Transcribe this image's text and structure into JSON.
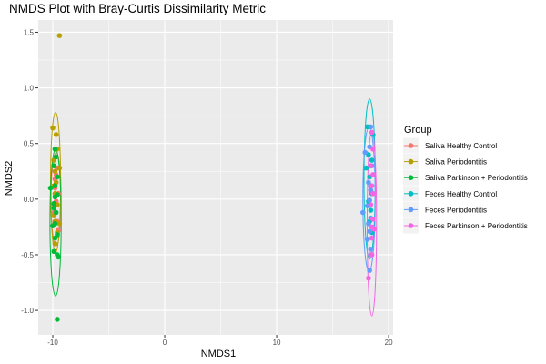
{
  "chart_data": {
    "type": "scatter",
    "title": "NMDS Plot with Bray-Curtis Dissimilarity Metric",
    "xlabel": "NMDS1",
    "ylabel": "NMDS2",
    "xlim": [
      -11.3,
      20.4
    ],
    "ylim": [
      -1.22,
      1.61
    ],
    "x_ticks": [
      -10,
      0,
      10,
      20
    ],
    "x_tick_labels": [
      "-10",
      "0",
      "10",
      "20"
    ],
    "y_ticks": [
      -1.0,
      -0.5,
      0.0,
      0.5,
      1.0,
      1.5
    ],
    "y_tick_labels": [
      "-1.0",
      "-0.5",
      "0.0",
      "0.5",
      "1.0",
      "1.5"
    ],
    "grid": true,
    "panel_background": "#ebebeb",
    "legend": {
      "title": "Group",
      "position": "right"
    },
    "series": [
      {
        "name": "Saliva Healthy Control",
        "color": "#f8766d",
        "points": [
          [
            -9.6,
            0.28
          ],
          [
            -9.8,
            0.18
          ],
          [
            -9.5,
            0.05
          ],
          [
            -9.7,
            -0.02
          ],
          [
            -9.9,
            -0.12
          ],
          [
            -9.6,
            -0.2
          ],
          [
            -9.8,
            0.1
          ],
          [
            -9.5,
            -0.28
          ],
          [
            -9.7,
            0.22
          ],
          [
            -9.9,
            -0.05
          ]
        ],
        "ellipse": {
          "center": [
            -9.7,
            0.0
          ],
          "semi_x": 0.45,
          "semi_y": 0.42
        }
      },
      {
        "name": "Saliva Periodontitis",
        "color": "#b79f00",
        "points": [
          [
            -9.4,
            1.47
          ],
          [
            -10.0,
            0.64
          ],
          [
            -9.7,
            0.58
          ],
          [
            -9.6,
            0.45
          ],
          [
            -9.9,
            0.35
          ],
          [
            -9.8,
            0.25
          ],
          [
            -9.4,
            0.28
          ],
          [
            -9.7,
            0.15
          ],
          [
            -9.8,
            0.05
          ],
          [
            -9.6,
            -0.05
          ],
          [
            -9.9,
            -0.15
          ],
          [
            -9.8,
            -0.2
          ],
          [
            -9.4,
            -0.22
          ],
          [
            -9.6,
            -0.3
          ],
          [
            -9.8,
            -0.4
          ],
          [
            -9.9,
            0.12
          ]
        ],
        "ellipse": {
          "center": [
            -9.75,
            0.15
          ],
          "semi_x": 0.45,
          "semi_y": 0.63
        }
      },
      {
        "name": "Saliva Parkinson + Periodontitis",
        "color": "#00ba38",
        "points": [
          [
            -9.6,
            -1.08
          ],
          [
            -9.8,
            0.45
          ],
          [
            -9.7,
            0.38
          ],
          [
            -9.9,
            0.3
          ],
          [
            -9.6,
            0.2
          ],
          [
            -9.8,
            0.12
          ],
          [
            -10.2,
            0.1
          ],
          [
            -9.6,
            0.04
          ],
          [
            -9.8,
            0.02
          ],
          [
            -9.9,
            -0.08
          ],
          [
            -9.7,
            -0.12
          ],
          [
            -9.8,
            -0.22
          ],
          [
            -10.0,
            -0.24
          ],
          [
            -9.6,
            -0.32
          ],
          [
            -9.8,
            -0.35
          ],
          [
            -9.9,
            -0.47
          ],
          [
            -9.6,
            -0.5
          ],
          [
            -9.5,
            -0.52
          ],
          [
            -9.9,
            -0.04
          ]
        ],
        "ellipse": {
          "center": [
            -9.75,
            -0.21
          ],
          "semi_x": 0.5,
          "semi_y": 0.66
        }
      },
      {
        "name": "Feces Healthy Control",
        "color": "#00bfc4",
        "points": [
          [
            18.1,
            0.65
          ],
          [
            18.6,
            0.58
          ],
          [
            18.2,
            0.4
          ],
          [
            18.5,
            0.35
          ],
          [
            18.0,
            0.28
          ],
          [
            18.3,
            0.2
          ],
          [
            18.4,
            0.12
          ],
          [
            18.5,
            0.05
          ],
          [
            18.2,
            -0.02
          ],
          [
            18.4,
            -0.1
          ],
          [
            18.3,
            -0.2
          ],
          [
            18.5,
            -0.3
          ]
        ],
        "ellipse": {
          "center": [
            18.3,
            0.18
          ],
          "semi_x": 0.5,
          "semi_y": 0.72
        }
      },
      {
        "name": "Feces Periodontitis",
        "color": "#619cff",
        "points": [
          [
            18.4,
            0.65
          ],
          [
            18.3,
            0.47
          ],
          [
            17.9,
            0.42
          ],
          [
            18.5,
            0.3
          ],
          [
            18.2,
            0.15
          ],
          [
            18.4,
            0.08
          ],
          [
            18.3,
            -0.01
          ],
          [
            18.1,
            -0.06
          ],
          [
            17.7,
            -0.12
          ],
          [
            18.4,
            -0.17
          ],
          [
            18.2,
            -0.22
          ],
          [
            18.3,
            -0.29
          ],
          [
            18.1,
            -0.36
          ],
          [
            18.4,
            -0.45
          ],
          [
            18.3,
            -0.64
          ]
        ],
        "ellipse": {
          "center": [
            18.25,
            0.0
          ],
          "semi_x": 0.55,
          "semi_y": 0.65
        }
      },
      {
        "name": "Feces Parkinson + Periodontitis",
        "color": "#f564e3",
        "points": [
          [
            18.5,
            0.6
          ],
          [
            18.6,
            0.45
          ],
          [
            18.4,
            0.3
          ],
          [
            18.6,
            0.22
          ],
          [
            18.5,
            0.12
          ],
          [
            18.6,
            0.05
          ],
          [
            18.4,
            -0.05
          ],
          [
            18.6,
            -0.18
          ],
          [
            18.5,
            -0.25
          ],
          [
            18.7,
            -0.27
          ],
          [
            18.5,
            -0.35
          ],
          [
            18.4,
            -0.5
          ],
          [
            18.5,
            -0.5
          ],
          [
            18.2,
            -0.71
          ]
        ],
        "ellipse": {
          "center": [
            18.5,
            -0.22
          ],
          "semi_x": 0.42,
          "semi_y": 0.83
        }
      }
    ]
  }
}
